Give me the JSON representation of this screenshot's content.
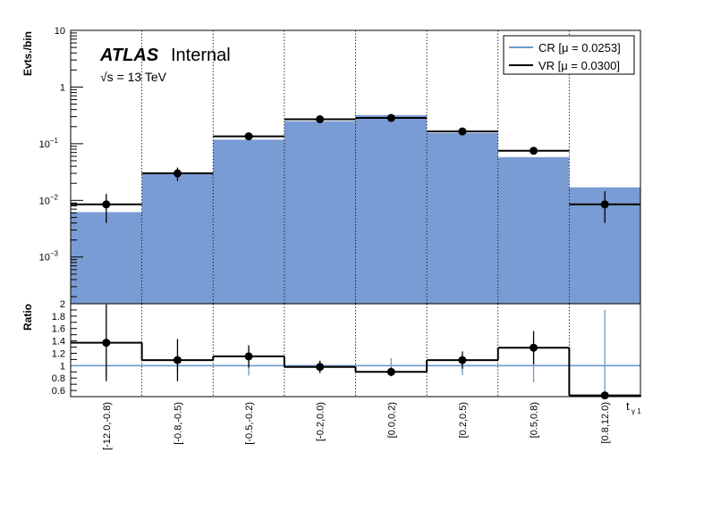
{
  "chart_data": {
    "type": "bar",
    "categories": [
      "[-12.0,-0.8)",
      "[-0.8,-0.5)",
      "[-0.5,-0.2)",
      "[-0.2,0.0)",
      "[0.0,0.2)",
      "[0.2,0.5)",
      "[0.5,0.8)",
      "[0.8,12.0)"
    ],
    "xlabel_main": "t",
    "xlabel_sub": "γ 1",
    "top_panel": {
      "ylabel": "Evts./bin",
      "yscale": "log",
      "ylim": [
        0.00015,
        10
      ],
      "y_ticks": [
        {
          "value": 0.001,
          "base": "10",
          "exp": "−3"
        },
        {
          "value": 0.01,
          "base": "10",
          "exp": "−2"
        },
        {
          "value": 0.1,
          "base": "10",
          "exp": "−1"
        },
        {
          "value": 1,
          "base": "1",
          "exp": ""
        },
        {
          "value": 10,
          "base": "10",
          "exp": ""
        }
      ],
      "series": [
        {
          "name": "CR [μ = 0.0253]",
          "style": "filled",
          "color": "#7a9cd4",
          "legend_color": "#6e98cc",
          "values": [
            0.0062,
            0.029,
            0.118,
            0.25,
            0.32,
            0.155,
            0.058,
            0.017
          ],
          "errors": [
            0.0012,
            0.004,
            0.01,
            0.015,
            0.02,
            0.01,
            0.006,
            0.006
          ]
        },
        {
          "name": "VR [μ = 0.0300]",
          "style": "line_points",
          "color": "#000000",
          "values": [
            0.0085,
            0.03,
            0.135,
            0.27,
            0.285,
            0.165,
            0.075,
            0.0085
          ],
          "errors_up": [
            0.0045,
            0.008,
            0.015,
            0.02,
            0.022,
            0.015,
            0.01,
            0.006
          ],
          "errors_down": [
            0.0045,
            0.008,
            0.015,
            0.02,
            0.022,
            0.015,
            0.01,
            0.0045
          ]
        }
      ],
      "annotations": {
        "atlas": "ATLAS",
        "internal": "Internal",
        "energy": "√s = 13 TeV"
      }
    },
    "ratio_panel": {
      "ylabel": "Ratio",
      "ylim": [
        0.5,
        2.0
      ],
      "y_ticks": [
        "0.6",
        "0.8",
        "1",
        "1.2",
        "1.4",
        "1.6",
        "1.8",
        "2"
      ],
      "reference": 1.0,
      "values": [
        1.37,
        1.09,
        1.15,
        0.98,
        0.9,
        1.09,
        1.29,
        0.52
      ],
      "errors_up": [
        0.62,
        0.34,
        0.18,
        0.1,
        0.07,
        0.14,
        0.27,
        0.0
      ],
      "errors_down": [
        0.62,
        0.34,
        0.18,
        0.1,
        0.07,
        0.14,
        0.27,
        0.0
      ],
      "cr_band_up": [
        0.15,
        0.1,
        0.16,
        0.08,
        0.12,
        0.15,
        0.27,
        0.9
      ],
      "cr_band_down": [
        0.15,
        0.1,
        0.16,
        0.08,
        0.12,
        0.15,
        0.27,
        0.9
      ]
    },
    "legend": {
      "placement": "top-right"
    },
    "grid": {
      "vertical_dotted_bin_edges": true
    }
  }
}
